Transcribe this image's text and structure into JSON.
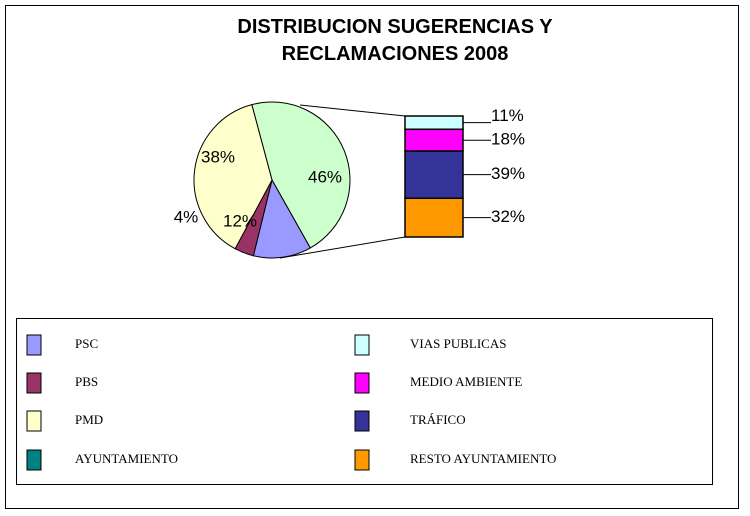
{
  "chart_data": {
    "type": "pie-of-bar",
    "title": "DISTRIBUCION SUGERENCIAS Y RECLAMACIONES 2008",
    "pie": {
      "categories": [
        "PSC",
        "PBS",
        "PMD",
        "AYUNTAMIENTO"
      ],
      "values": [
        12,
        4,
        38,
        46
      ],
      "value_labels": [
        "12%",
        "4%",
        "38%",
        "46%"
      ],
      "colors": [
        "#9999ff",
        "#993366",
        "#ffffcc",
        "#ccffcc"
      ],
      "legend_colors": [
        "#9999ff",
        "#993366",
        "#ffffcc",
        "#008080"
      ]
    },
    "bar": {
      "categories": [
        "VIAS PUBLICAS",
        "MEDIO AMBIENTE",
        "TRÁFICO",
        "RESTO AYUNTAMIENTO"
      ],
      "values": [
        11,
        18,
        39,
        32
      ],
      "value_labels": [
        "11%",
        "18%",
        "39%",
        "32%"
      ],
      "colors": [
        "#ccffff",
        "#ff00ff",
        "#333399",
        "#ff9900"
      ]
    }
  }
}
